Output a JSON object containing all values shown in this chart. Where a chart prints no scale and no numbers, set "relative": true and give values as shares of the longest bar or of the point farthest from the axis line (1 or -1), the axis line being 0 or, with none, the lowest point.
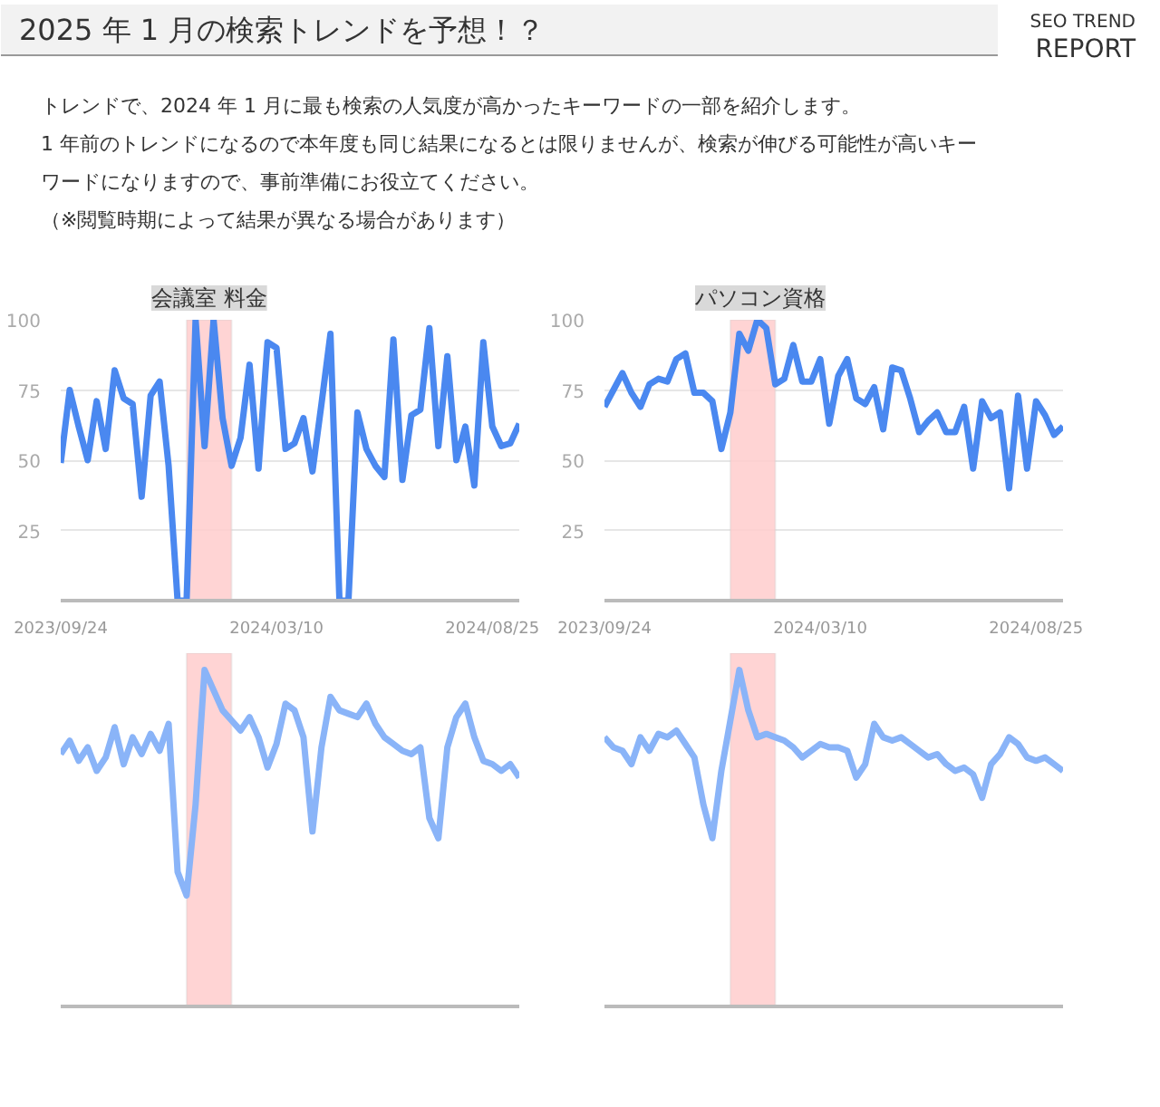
{
  "chart_data": [
    {
      "type": "other",
      "title": "2025 年 1 月の検索トレンドを予想！？",
      "subtitle": "SEO TREND REPORT",
      "annotations": [
        "トレンドで、2024 年 1 月に最も検索の人気度が高かったキーワードの一部を紹介します。",
        "1 年前のトレンドになるので本年度も同じ結果になるとは限りませんが、検索が伸びる可能性が高いキー",
        "ワードになりますので、事前準備にお役立てください。",
        "（※閲覧時期によって結果が異なる場合があります）"
      ]
    },
    {
      "type": "line",
      "title": "会議室 料金",
      "x": [
        "2023-09-24",
        "2023-10-01",
        "2023-10-08",
        "2023-10-15",
        "2023-10-22",
        "2023-10-29",
        "2023-11-05",
        "2023-11-12",
        "2023-11-19",
        "2023-11-26",
        "2023-12-03",
        "2023-12-10",
        "2023-12-17",
        "2023-12-24",
        "2023-12-31",
        "2024-01-07",
        "2024-01-14",
        "2024-01-21",
        "2024-01-28",
        "2024-02-04",
        "2024-02-11",
        "2024-02-18",
        "2024-02-25",
        "2024-03-03",
        "2024-03-10",
        "2024-03-17",
        "2024-03-24",
        "2024-03-31",
        "2024-04-07",
        "2024-04-14",
        "2024-04-21",
        "2024-04-28",
        "2024-05-05",
        "2024-05-12",
        "2024-05-19",
        "2024-05-26",
        "2024-06-02",
        "2024-06-09",
        "2024-06-16",
        "2024-06-23",
        "2024-06-30",
        "2024-07-07",
        "2024-07-14",
        "2024-07-21",
        "2024-07-28",
        "2024-08-04",
        "2024-08-11",
        "2024-08-18",
        "2024-08-25",
        "2024-09-01",
        "2024-09-08",
        "2024-09-15"
      ],
      "xlim": [
        "2023-09-24",
        "2024-09-15"
      ],
      "xticks": [
        {
          "value": "2023-09-24",
          "label": "2023/09/24"
        },
        {
          "value": "2024-03-10",
          "label": "2024/03/10"
        },
        {
          "value": "2024-08-25",
          "label": "2024/08/25"
        }
      ],
      "ylim": [
        0,
        100
      ],
      "yticks": [
        25,
        50,
        75,
        100
      ],
      "grid": "y",
      "bands": [
        {
          "axis": "x",
          "from": "2023-12-31",
          "to": "2024-02-04",
          "color": "#ffcccc"
        }
      ],
      "series": [
        {
          "color": "#4a88f0",
          "values": [
            49,
            75,
            62,
            50,
            71,
            54,
            82,
            72,
            70,
            37,
            73,
            78,
            48,
            0,
            0,
            100,
            55,
            100,
            65,
            48,
            58,
            84,
            47,
            92,
            90,
            54,
            56,
            65,
            46,
            70,
            95,
            0,
            0,
            67,
            54,
            48,
            44,
            93,
            43,
            66,
            68,
            97,
            55,
            87,
            50,
            62,
            41,
            92,
            62,
            55,
            56,
            63
          ]
        }
      ]
    },
    {
      "type": "line",
      "title": "パソコン資格",
      "x": [
        "2023-09-24",
        "2023-10-01",
        "2023-10-08",
        "2023-10-15",
        "2023-10-22",
        "2023-10-29",
        "2023-11-05",
        "2023-11-12",
        "2023-11-19",
        "2023-11-26",
        "2023-12-03",
        "2023-12-10",
        "2023-12-17",
        "2023-12-24",
        "2023-12-31",
        "2024-01-07",
        "2024-01-14",
        "2024-01-21",
        "2024-01-28",
        "2024-02-04",
        "2024-02-11",
        "2024-02-18",
        "2024-02-25",
        "2024-03-03",
        "2024-03-10",
        "2024-03-17",
        "2024-03-24",
        "2024-03-31",
        "2024-04-07",
        "2024-04-14",
        "2024-04-21",
        "2024-04-28",
        "2024-05-05",
        "2024-05-12",
        "2024-05-19",
        "2024-05-26",
        "2024-06-02",
        "2024-06-09",
        "2024-06-16",
        "2024-06-23",
        "2024-06-30",
        "2024-07-07",
        "2024-07-14",
        "2024-07-21",
        "2024-07-28",
        "2024-08-04",
        "2024-08-11",
        "2024-08-18",
        "2024-08-25",
        "2024-09-01",
        "2024-09-08",
        "2024-09-15"
      ],
      "xlim": [
        "2023-09-24",
        "2024-09-15"
      ],
      "xticks": [
        {
          "value": "2023-09-24",
          "label": "2023/09/24"
        },
        {
          "value": "2024-03-10",
          "label": "2024/03/10"
        },
        {
          "value": "2024-08-25",
          "label": "2024/08/25"
        }
      ],
      "ylim": [
        0,
        100
      ],
      "yticks": [
        25,
        50,
        75,
        100
      ],
      "grid": "y",
      "bands": [
        {
          "axis": "x",
          "from": "2023-12-31",
          "to": "2024-02-04",
          "color": "#ffcccc"
        }
      ],
      "series": [
        {
          "color": "#4a88f0",
          "values": [
            69,
            75,
            81,
            74,
            69,
            77,
            79,
            78,
            86,
            88,
            74,
            74,
            71,
            54,
            67,
            95,
            89,
            100,
            97,
            77,
            79,
            91,
            78,
            78,
            86,
            63,
            80,
            86,
            72,
            70,
            76,
            61,
            83,
            82,
            72,
            60,
            64,
            67,
            60,
            60,
            69,
            47,
            71,
            65,
            67,
            40,
            73,
            47,
            71,
            66,
            59,
            62
          ]
        }
      ]
    },
    {
      "type": "line",
      "relative": true,
      "categories": [
        null,
        null,
        null,
        null,
        null,
        null,
        null,
        null,
        null,
        null,
        null,
        null,
        null,
        null,
        null,
        null,
        null,
        null,
        null,
        null,
        null,
        null,
        null,
        null,
        null,
        null,
        null,
        null,
        null,
        null,
        null,
        null,
        null,
        null,
        null,
        null,
        null,
        null,
        null,
        null,
        null,
        null,
        null,
        null,
        null,
        null,
        null,
        null,
        null,
        null,
        null,
        null
      ],
      "series": [
        {
          "color": "#8ab4f8",
          "values": [
            0.75,
            0.79,
            0.73,
            0.77,
            0.7,
            0.74,
            0.83,
            0.72,
            0.8,
            0.75,
            0.81,
            0.76,
            0.84,
            0.4,
            0.33,
            0.6,
            1,
            0.94,
            0.88,
            0.85,
            0.82,
            0.86,
            0.8,
            0.71,
            0.78,
            0.9,
            0.88,
            0.8,
            0.52,
            0.77,
            0.92,
            0.88,
            0.87,
            0.86,
            0.9,
            0.84,
            0.8,
            0.78,
            0.76,
            0.75,
            0.77,
            0.56,
            0.5,
            0.77,
            0.86,
            0.9,
            0.8,
            0.73,
            0.72,
            0.7,
            0.72,
            0.68
          ]
        }
      ]
    },
    {
      "type": "line",
      "relative": true,
      "categories": [
        null,
        null,
        null,
        null,
        null,
        null,
        null,
        null,
        null,
        null,
        null,
        null,
        null,
        null,
        null,
        null,
        null,
        null,
        null,
        null,
        null,
        null,
        null,
        null,
        null,
        null,
        null,
        null,
        null,
        null,
        null,
        null,
        null,
        null,
        null,
        null,
        null,
        null,
        null,
        null,
        null,
        null,
        null,
        null,
        null,
        null,
        null,
        null,
        null,
        null,
        null,
        null
      ],
      "series": [
        {
          "color": "#8ab4f8",
          "values": [
            0.8,
            0.77,
            0.76,
            0.72,
            0.8,
            0.76,
            0.81,
            0.8,
            0.82,
            0.78,
            0.74,
            0.6,
            0.5,
            0.7,
            0.85,
            1,
            0.88,
            0.8,
            0.81,
            0.8,
            0.79,
            0.77,
            0.74,
            0.76,
            0.78,
            0.77,
            0.77,
            0.76,
            0.68,
            0.72,
            0.84,
            0.8,
            0.79,
            0.8,
            0.78,
            0.76,
            0.74,
            0.75,
            0.72,
            0.7,
            0.71,
            0.69,
            0.62,
            0.72,
            0.75,
            0.8,
            0.78,
            0.74,
            0.73,
            0.74,
            0.72,
            0.7
          ]
        }
      ]
    }
  ]
}
